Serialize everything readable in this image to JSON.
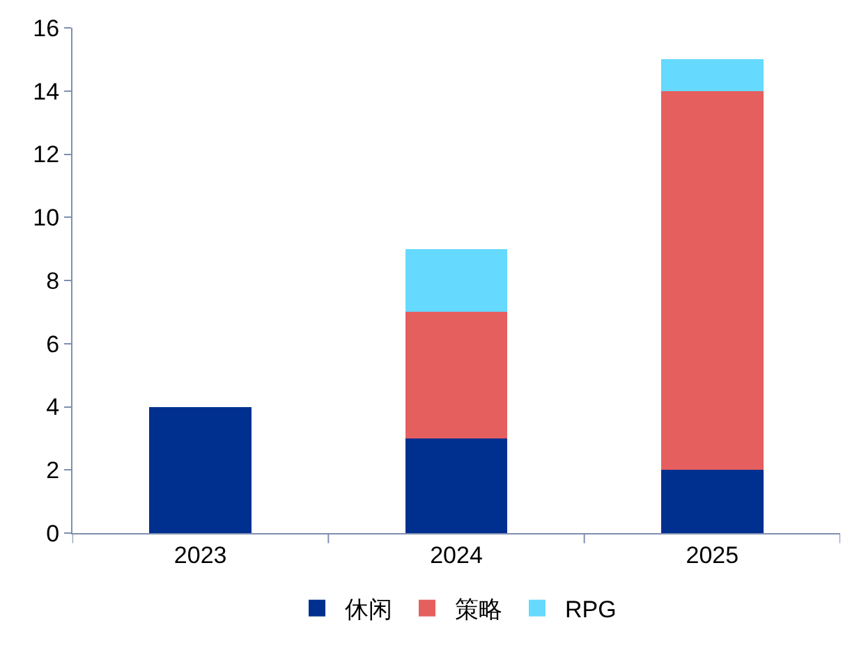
{
  "chart_data": {
    "type": "bar",
    "stacked": true,
    "categories": [
      "2023",
      "2024",
      "2025"
    ],
    "series": [
      {
        "name": "休闲",
        "color": "#00308f",
        "values": [
          4,
          3,
          2
        ]
      },
      {
        "name": "策略",
        "color": "#e65f5f",
        "values": [
          null,
          4,
          12
        ]
      },
      {
        "name": "RPG",
        "color": "#66d9ff",
        "values": [
          null,
          2,
          1
        ]
      }
    ],
    "ylim": [
      0,
      16
    ],
    "yticks": [
      0,
      2,
      4,
      6,
      8,
      10,
      12,
      14,
      16
    ],
    "grid": false,
    "legend": "bottom"
  }
}
